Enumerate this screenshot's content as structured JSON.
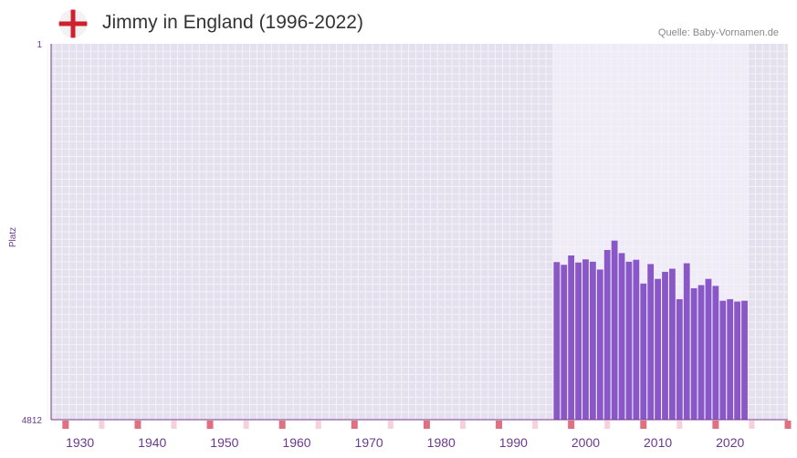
{
  "header": {
    "title": "Jimmy in England (1996-2022)",
    "source": "Quelle: Baby-Vornamen.de",
    "flag_icon": "england-flag-icon"
  },
  "colors": {
    "bar": "#8a57c8",
    "plot_bg": "#e4e0ee",
    "highlight_bg": "#efebf7",
    "grid": "#f4f2f8",
    "axis": "#7a3a8a",
    "tick_text": "#6b3a8e",
    "decade_marker": "#e07080",
    "half_decade_marker": "#f6d0da",
    "flag_red": "#d0202e"
  },
  "chart_data": {
    "type": "bar",
    "title": "Jimmy in England (1996-2022)",
    "ylabel": "Platz",
    "xlabel": "",
    "y_axis_inverted": true,
    "ylim": [
      1,
      4812
    ],
    "ytick_labels": [
      "1",
      "4812"
    ],
    "xlim": [
      1926,
      2028
    ],
    "xtick_labels": [
      "1930",
      "1940",
      "1950",
      "1960",
      "1970",
      "1980",
      "1990",
      "2000",
      "2010",
      "2020"
    ],
    "highlight_range": [
      1996,
      2022
    ],
    "x": [
      1996,
      1997,
      1998,
      1999,
      2000,
      2001,
      2002,
      2003,
      2004,
      2005,
      2006,
      2007,
      2008,
      2009,
      2010,
      2011,
      2012,
      2013,
      2014,
      2015,
      2016,
      2017,
      2018,
      2019,
      2020,
      2021,
      2022
    ],
    "values": [
      2795,
      2830,
      2710,
      2800,
      2760,
      2790,
      2890,
      2640,
      2520,
      2680,
      2790,
      2765,
      3070,
      2820,
      3010,
      2920,
      2880,
      3270,
      2810,
      3130,
      3090,
      3010,
      3100,
      3290,
      3270,
      3300,
      3290
    ]
  }
}
